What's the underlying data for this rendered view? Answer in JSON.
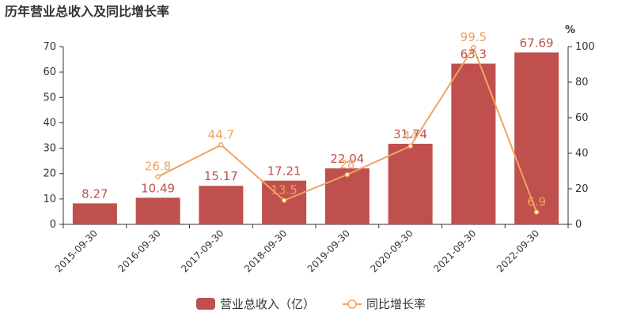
{
  "chart_data": {
    "type": "bar",
    "title": "历年营业总收入及同比增长率",
    "categories": [
      "2015-09-30",
      "2016-09-30",
      "2017-09-30",
      "2018-09-30",
      "2019-09-30",
      "2020-09-30",
      "2021-09-30",
      "2022-09-30"
    ],
    "series": [
      {
        "name": "营业总收入（亿）",
        "type": "bar",
        "axis": "left",
        "values": [
          8.27,
          10.49,
          15.17,
          17.21,
          22.04,
          31.74,
          63.3,
          67.69
        ],
        "labels": [
          "8.27",
          "10.49",
          "15.17",
          "17.21",
          "22.04",
          "31.74",
          "63.3",
          "67.69"
        ],
        "color": "#c0504d"
      },
      {
        "name": "同比增长率",
        "type": "line",
        "axis": "right",
        "values": [
          null,
          26.8,
          44.7,
          13.5,
          28,
          44,
          99.5,
          6.9
        ],
        "labels": [
          "",
          "26.8",
          "44.7",
          "13.5",
          "28",
          "44",
          "99.5",
          "6.9"
        ],
        "color": "#f0a35e"
      }
    ],
    "y_left": {
      "min": 0,
      "max": 70,
      "ticks": [
        0,
        10,
        20,
        30,
        40,
        50,
        60,
        70
      ]
    },
    "y_right": {
      "min": 0,
      "max": 100,
      "ticks": [
        0,
        20,
        40,
        60,
        80,
        100
      ],
      "unit": "%"
    },
    "grid": false,
    "legend": "bottom-center"
  }
}
